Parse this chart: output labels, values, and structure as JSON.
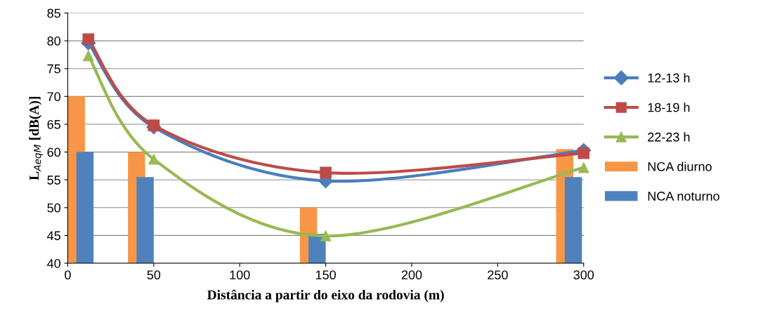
{
  "chart_data": {
    "type": "line",
    "xlabel": "Distância a partir do eixo da rodovia (m)",
    "ylabel": "L$_{AeqM}$ [dB(A)]",
    "xlim": [
      0,
      300
    ],
    "xticks": [
      0,
      50,
      100,
      150,
      200,
      250,
      300
    ],
    "ylim": [
      40,
      85
    ],
    "yticks": [
      40,
      45,
      50,
      55,
      60,
      65,
      70,
      75,
      80,
      85
    ],
    "grid": "y",
    "legend": "right",
    "line_style": "solid",
    "series": [
      {
        "name": "12-13 h",
        "color": "#4a7ebb",
        "marker": "diamond",
        "x": [
          12,
          50,
          150,
          300
        ],
        "values": [
          79.6,
          64.5,
          54.8,
          60.3
        ]
      },
      {
        "name": "18-19 h",
        "color": "#be4b48",
        "marker": "square",
        "x": [
          12,
          50,
          150,
          300
        ],
        "values": [
          80.3,
          64.8,
          56.3,
          59.8
        ]
      },
      {
        "name": "22-23 h",
        "color": "#98b954",
        "marker": "triangle",
        "x": [
          12,
          50,
          150,
          300
        ],
        "values": [
          77.3,
          58.7,
          44.9,
          57.2
        ]
      },
      {
        "name": "NCA diurno",
        "type": "bar",
        "color": "#f79646",
        "x": [
          5,
          40,
          140,
          289
        ],
        "values": [
          70,
          60,
          50,
          60.5
        ]
      },
      {
        "name": "NCA noturno",
        "type": "bar",
        "color": "#4f81bd",
        "x": [
          10,
          45,
          145,
          294
        ],
        "values": [
          60,
          55.5,
          45.3,
          55.5
        ]
      }
    ]
  }
}
